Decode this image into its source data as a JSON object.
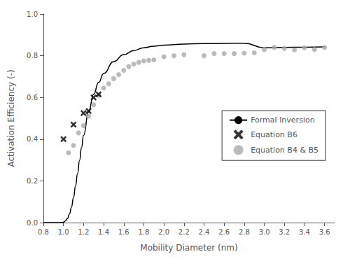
{
  "chart_data": {
    "type": "line+scatter",
    "xlabel": "Mobility Diameter (nm)",
    "ylabel": "Activation Efficiency (-)",
    "xlim": [
      0.8,
      3.7
    ],
    "ylim": [
      0.0,
      1.0
    ],
    "xticks": [
      0.8,
      {
        "value": 1.0,
        "label": "1.0"
      },
      1.2,
      1.4,
      1.6,
      1.8,
      {
        "value": 2.0,
        "label": "2.0"
      },
      2.2,
      2.4,
      2.6,
      2.8,
      {
        "value": 3.0,
        "label": "3.0"
      },
      3.2,
      3.4,
      3.6
    ],
    "yticks": [
      {
        "value": 0.0,
        "label": "0.0"
      },
      0.2,
      0.4,
      0.6,
      0.8,
      {
        "value": 1.0,
        "label": "1.0"
      }
    ],
    "grid": false,
    "legend": "right",
    "series": [
      {
        "name": "Formal Inversion",
        "type": "line",
        "color": "#000000",
        "line_style": "solid",
        "x": [
          0.8,
          0.85,
          0.9,
          0.95,
          1.0,
          1.02,
          1.04,
          1.06,
          1.08,
          1.1,
          1.12,
          1.14,
          1.16,
          1.18,
          1.2,
          1.25,
          1.3,
          1.35,
          1.4,
          1.5,
          1.6,
          1.7,
          1.8,
          1.9,
          2.0,
          2.2,
          2.4,
          2.6,
          2.8,
          3.0,
          3.2,
          3.4,
          3.6
        ],
        "values": [
          0.0,
          0.0,
          0.0,
          0.0,
          0.002,
          0.008,
          0.02,
          0.042,
          0.075,
          0.12,
          0.175,
          0.235,
          0.298,
          0.36,
          0.418,
          0.53,
          0.615,
          0.672,
          0.715,
          0.772,
          0.805,
          0.825,
          0.838,
          0.846,
          0.851,
          0.856,
          0.858,
          0.859,
          0.86,
          0.838,
          0.84,
          0.841,
          0.842
        ]
      },
      {
        "name": "Equation B6",
        "type": "scatter",
        "marker": "x",
        "color": "#000000",
        "x": [
          1.0,
          1.1,
          1.2,
          1.25,
          1.3,
          1.35
        ],
        "values": [
          0.4,
          0.47,
          0.525,
          0.535,
          0.6,
          0.615
        ]
      },
      {
        "name": "Equation B4 & B5",
        "type": "scatter",
        "marker": "circle",
        "color": "#aaaaaa",
        "x": [
          1.05,
          1.1,
          1.15,
          1.2,
          1.25,
          1.3,
          1.35,
          1.4,
          1.45,
          1.5,
          1.55,
          1.6,
          1.65,
          1.7,
          1.75,
          1.8,
          1.85,
          1.9,
          2.0,
          2.1,
          2.2,
          2.4,
          2.5,
          2.6,
          2.7,
          2.8,
          2.9,
          3.0,
          3.1,
          3.2,
          3.3,
          3.4,
          3.5,
          3.6
        ],
        "values": [
          0.335,
          0.37,
          0.43,
          0.465,
          0.51,
          0.565,
          0.61,
          0.645,
          0.665,
          0.69,
          0.71,
          0.73,
          0.748,
          0.76,
          0.768,
          0.775,
          0.778,
          0.78,
          0.795,
          0.8,
          0.805,
          0.8,
          0.81,
          0.81,
          0.81,
          0.812,
          0.814,
          0.83,
          0.84,
          0.835,
          0.828,
          0.838,
          0.83,
          0.84
        ]
      }
    ]
  }
}
